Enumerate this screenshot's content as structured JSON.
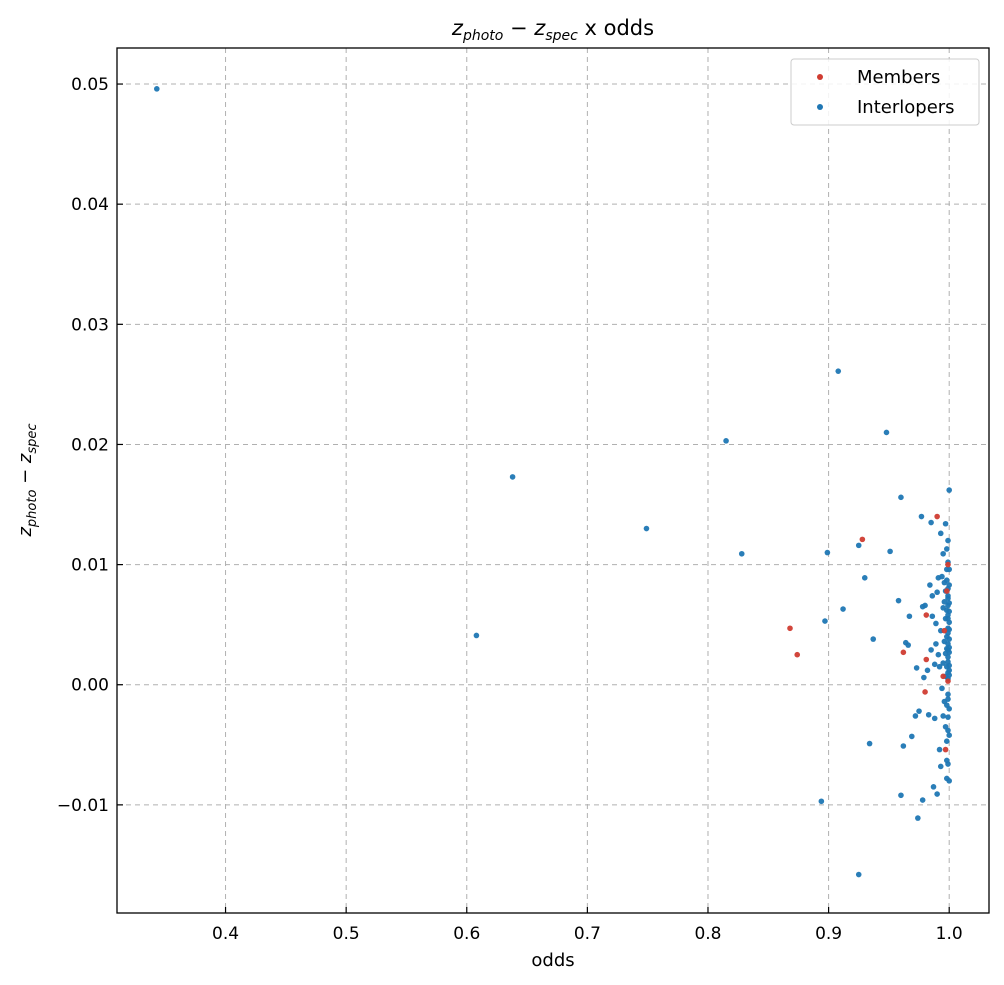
{
  "chart_data": {
    "type": "scatter",
    "title": {
      "z1": "z",
      "sub1": "photo",
      "minus": " − ",
      "z2": "z",
      "sub2": "spec",
      "rest": " x odds"
    },
    "xlabel": "odds",
    "ylabel": {
      "z1": "z",
      "sub1": "photo",
      "minus": " − ",
      "z2": "z",
      "sub2": "spec"
    },
    "xlim": [
      0.31,
      1.033
    ],
    "ylim": [
      -0.019,
      0.053
    ],
    "xticks": [
      0.4,
      0.5,
      0.6,
      0.7,
      0.8,
      0.9,
      1.0
    ],
    "xtick_labels": [
      "0.4",
      "0.5",
      "0.6",
      "0.7",
      "0.8",
      "0.9",
      "1.0"
    ],
    "yticks": [
      -0.01,
      0.0,
      0.01,
      0.02,
      0.03,
      0.04,
      0.05
    ],
    "ytick_labels": [
      "−0.01",
      "0.00",
      "0.01",
      "0.02",
      "0.03",
      "0.04",
      "0.05"
    ],
    "grid": true,
    "legend": "top-right",
    "series": [
      {
        "name": "Members",
        "color": "#d03c31",
        "points": [
          [
            0.868,
            0.0047
          ],
          [
            0.874,
            0.0025
          ],
          [
            0.928,
            0.0121
          ],
          [
            0.962,
            0.0027
          ],
          [
            0.981,
            0.0021
          ],
          [
            0.98,
            -0.0006
          ],
          [
            0.981,
            0.0058
          ],
          [
            0.99,
            0.014
          ],
          [
            0.995,
            0.0007
          ],
          [
            0.997,
            -0.0054
          ],
          [
            0.998,
            0.0078
          ],
          [
            0.999,
            0.0003
          ],
          [
            0.999,
            0.01
          ],
          [
            0.996,
            0.0045
          ]
        ]
      },
      {
        "name": "Interlopers",
        "color": "#1f77b4",
        "points": [
          [
            0.343,
            0.0496
          ],
          [
            0.608,
            0.0041
          ],
          [
            0.638,
            0.0173
          ],
          [
            0.749,
            0.013
          ],
          [
            0.815,
            0.0203
          ],
          [
            0.828,
            0.0109
          ],
          [
            0.894,
            -0.0097
          ],
          [
            0.897,
            0.0053
          ],
          [
            0.899,
            0.011
          ],
          [
            0.908,
            0.0261
          ],
          [
            0.912,
            0.0063
          ],
          [
            0.925,
            0.0116
          ],
          [
            0.925,
            -0.0158
          ],
          [
            0.93,
            0.0089
          ],
          [
            0.934,
            -0.0049
          ],
          [
            0.937,
            0.0038
          ],
          [
            0.948,
            0.021
          ],
          [
            0.951,
            0.0111
          ],
          [
            0.958,
            0.007
          ],
          [
            0.96,
            0.0156
          ],
          [
            0.96,
            -0.0092
          ],
          [
            0.962,
            -0.0051
          ],
          [
            0.964,
            0.0035
          ],
          [
            0.966,
            0.0033
          ],
          [
            0.967,
            0.0057
          ],
          [
            0.969,
            -0.0043
          ],
          [
            0.972,
            -0.0026
          ],
          [
            0.973,
            0.0014
          ],
          [
            0.974,
            -0.0111
          ],
          [
            0.975,
            -0.0022
          ],
          [
            0.977,
            0.014
          ],
          [
            0.978,
            -0.0096
          ],
          [
            0.978,
            0.0065
          ],
          [
            0.979,
            0.0006
          ],
          [
            0.98,
            0.0066
          ],
          [
            0.982,
            0.0012
          ],
          [
            0.983,
            -0.0025
          ],
          [
            0.984,
            0.0083
          ],
          [
            0.985,
            0.0135
          ],
          [
            0.985,
            0.0029
          ],
          [
            0.986,
            0.0057
          ],
          [
            0.986,
            0.0074
          ],
          [
            0.987,
            -0.0085
          ],
          [
            0.988,
            0.0017
          ],
          [
            0.988,
            -0.0028
          ],
          [
            0.989,
            0.0051
          ],
          [
            0.989,
            0.0034
          ],
          [
            0.99,
            -0.0091
          ],
          [
            0.99,
            0.0077
          ],
          [
            0.991,
            0.0089
          ],
          [
            0.991,
            0.0025
          ],
          [
            0.992,
            -0.0054
          ],
          [
            0.992,
            0.0015
          ],
          [
            0.993,
            0.0126
          ],
          [
            0.993,
            -0.0068
          ],
          [
            0.993,
            0.0045
          ],
          [
            0.994,
            0.009
          ],
          [
            0.994,
            -0.0003
          ],
          [
            0.995,
            0.0064
          ],
          [
            0.995,
            0.0018
          ],
          [
            0.995,
            -0.0026
          ],
          [
            0.995,
            0.0109
          ],
          [
            0.996,
            0.0085
          ],
          [
            0.996,
            0.0036
          ],
          [
            0.996,
            0.0069
          ],
          [
            0.996,
            -0.0014
          ],
          [
            0.997,
            0.0134
          ],
          [
            0.997,
            0.0026
          ],
          [
            0.997,
            0.0055
          ],
          [
            0.997,
            -0.0035
          ],
          [
            0.997,
            0.0007
          ],
          [
            0.997,
            0.0078
          ],
          [
            0.998,
            0.0096
          ],
          [
            0.998,
            -0.0063
          ],
          [
            0.998,
            0.004
          ],
          [
            0.998,
            0.0015
          ],
          [
            0.998,
            -0.0017
          ],
          [
            0.998,
            0.0113
          ],
          [
            0.998,
            0.0062
          ],
          [
            0.998,
            -0.0047
          ],
          [
            0.998,
            0.003
          ],
          [
            0.998,
            0.0087
          ],
          [
            0.998,
            -0.0078
          ],
          [
            0.999,
            0.0047
          ],
          [
            0.999,
            0.001
          ],
          [
            0.999,
            0.0072
          ],
          [
            0.999,
            -0.0008
          ],
          [
            0.999,
            0.0023
          ],
          [
            0.999,
            0.0055
          ],
          [
            0.999,
            0.012
          ],
          [
            0.999,
            -0.0038
          ],
          [
            0.999,
            0.0034
          ],
          [
            0.999,
            0.0066
          ],
          [
            0.999,
            -0.0027
          ],
          [
            0.999,
            0.008
          ],
          [
            0.999,
            0.0019
          ],
          [
            0.999,
            0.0043
          ],
          [
            0.999,
            0.0102
          ],
          [
            0.999,
            -0.0066
          ],
          [
            0.999,
            0.0005
          ],
          [
            0.999,
            0.0058
          ],
          [
            0.999,
            0.0029
          ],
          [
            0.999,
            -0.0012
          ],
          [
            0.999,
            0.0074
          ],
          [
            1.0,
            0.0162
          ],
          [
            1.0,
            0.0038
          ],
          [
            1.0,
            0.0061
          ],
          [
            1.0,
            0.0012
          ],
          [
            1.0,
            -0.008
          ],
          [
            1.0,
            0.0052
          ],
          [
            1.0,
            0.0027
          ],
          [
            1.0,
            0.0083
          ],
          [
            1.0,
            -0.002
          ],
          [
            1.0,
            0.0096
          ],
          [
            1.0,
            0.0046
          ],
          [
            1.0,
            0.0008
          ],
          [
            1.0,
            0.0068
          ],
          [
            1.0,
            -0.0042
          ],
          [
            1.0,
            0.0031
          ],
          [
            1.0,
            0.0016
          ]
        ]
      }
    ]
  }
}
